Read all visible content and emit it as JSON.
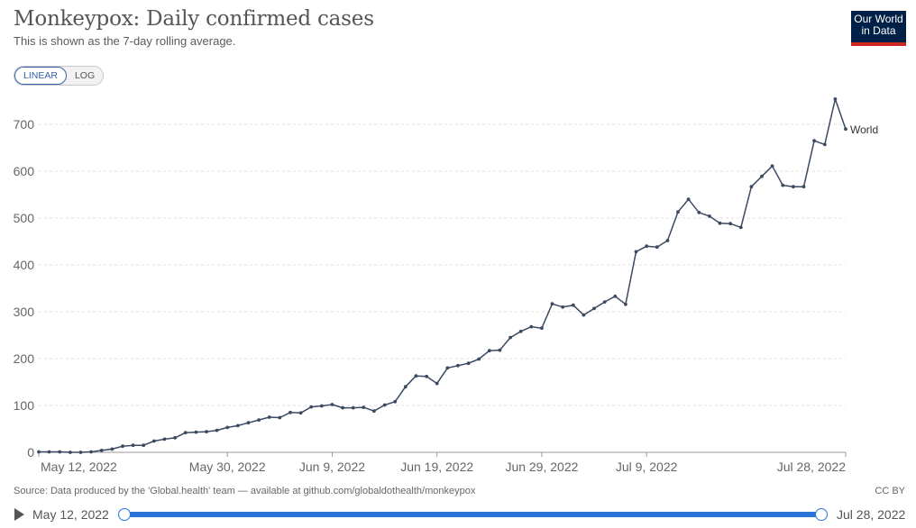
{
  "header": {
    "title": "Monkeypox: Daily confirmed cases",
    "subtitle": "This is shown as the 7-day rolling average."
  },
  "logo": {
    "line1": "Our World",
    "line2": "in Data",
    "bg": "#002147",
    "accent": "#ce261e"
  },
  "scale_toggle": {
    "linear": "LINEAR",
    "log": "LOG",
    "active": "linear"
  },
  "footer": {
    "source": "Source: Data produced by the 'Global.health' team — available at github.com/globaldothealth/monkeypox",
    "license": "CC BY"
  },
  "timeline": {
    "start": "May 12, 2022",
    "end": "Jul 28, 2022"
  },
  "colors": {
    "line": "#3b4a61",
    "grid": "#dddddd",
    "axis": "#666666",
    "slider": "#2874d8"
  },
  "chart_data": {
    "type": "line",
    "title": "Monkeypox: Daily confirmed cases",
    "subtitle": "This is shown as the 7-day rolling average.",
    "xlabel": "",
    "ylabel": "",
    "ylim": [
      0,
      750
    ],
    "xlim": [
      "2022-05-12",
      "2022-07-28"
    ],
    "yticks": [
      0,
      100,
      200,
      300,
      400,
      500,
      600,
      700
    ],
    "xticks": [
      {
        "date": "2022-05-12",
        "label": "May 12, 2022"
      },
      {
        "date": "2022-05-30",
        "label": "May 30, 2022"
      },
      {
        "date": "2022-06-09",
        "label": "Jun 9, 2022"
      },
      {
        "date": "2022-06-19",
        "label": "Jun 19, 2022"
      },
      {
        "date": "2022-06-29",
        "label": "Jun 29, 2022"
      },
      {
        "date": "2022-07-09",
        "label": "Jul 9, 2022"
      },
      {
        "date": "2022-07-28",
        "label": "Jul 28, 2022"
      }
    ],
    "grid": true,
    "series": [
      {
        "name": "World",
        "x": [
          "2022-05-12",
          "2022-05-13",
          "2022-05-14",
          "2022-05-15",
          "2022-05-16",
          "2022-05-17",
          "2022-05-18",
          "2022-05-19",
          "2022-05-20",
          "2022-05-21",
          "2022-05-22",
          "2022-05-23",
          "2022-05-24",
          "2022-05-25",
          "2022-05-26",
          "2022-05-27",
          "2022-05-28",
          "2022-05-29",
          "2022-05-30",
          "2022-05-31",
          "2022-06-01",
          "2022-06-02",
          "2022-06-03",
          "2022-06-04",
          "2022-06-05",
          "2022-06-06",
          "2022-06-07",
          "2022-06-08",
          "2022-06-09",
          "2022-06-10",
          "2022-06-11",
          "2022-06-12",
          "2022-06-13",
          "2022-06-14",
          "2022-06-15",
          "2022-06-16",
          "2022-06-17",
          "2022-06-18",
          "2022-06-19",
          "2022-06-20",
          "2022-06-21",
          "2022-06-22",
          "2022-06-23",
          "2022-06-24",
          "2022-06-25",
          "2022-06-26",
          "2022-06-27",
          "2022-06-28",
          "2022-06-29",
          "2022-06-30",
          "2022-07-01",
          "2022-07-02",
          "2022-07-03",
          "2022-07-04",
          "2022-07-05",
          "2022-07-06",
          "2022-07-07",
          "2022-07-08",
          "2022-07-09",
          "2022-07-10",
          "2022-07-11",
          "2022-07-12",
          "2022-07-13",
          "2022-07-14",
          "2022-07-15",
          "2022-07-16",
          "2022-07-17",
          "2022-07-18",
          "2022-07-19",
          "2022-07-20",
          "2022-07-21",
          "2022-07-22",
          "2022-07-23",
          "2022-07-24",
          "2022-07-25",
          "2022-07-26",
          "2022-07-27",
          "2022-07-28"
        ],
        "values": [
          1,
          1,
          1,
          0,
          0,
          1,
          4,
          7,
          13,
          15,
          15,
          24,
          28,
          31,
          42,
          43,
          44,
          47,
          53,
          57,
          63,
          69,
          75,
          74,
          85,
          84,
          97,
          99,
          102,
          95,
          95,
          96,
          88,
          101,
          108,
          140,
          163,
          162,
          147,
          180,
          185,
          190,
          199,
          217,
          218,
          245,
          258,
          268,
          265,
          317,
          310,
          314,
          293,
          307,
          321,
          333,
          316,
          428,
          440,
          438,
          452,
          513,
          540,
          512,
          504,
          489,
          488,
          480,
          567,
          589,
          611,
          570,
          567,
          567,
          665,
          657,
          754,
          690
        ]
      }
    ]
  }
}
